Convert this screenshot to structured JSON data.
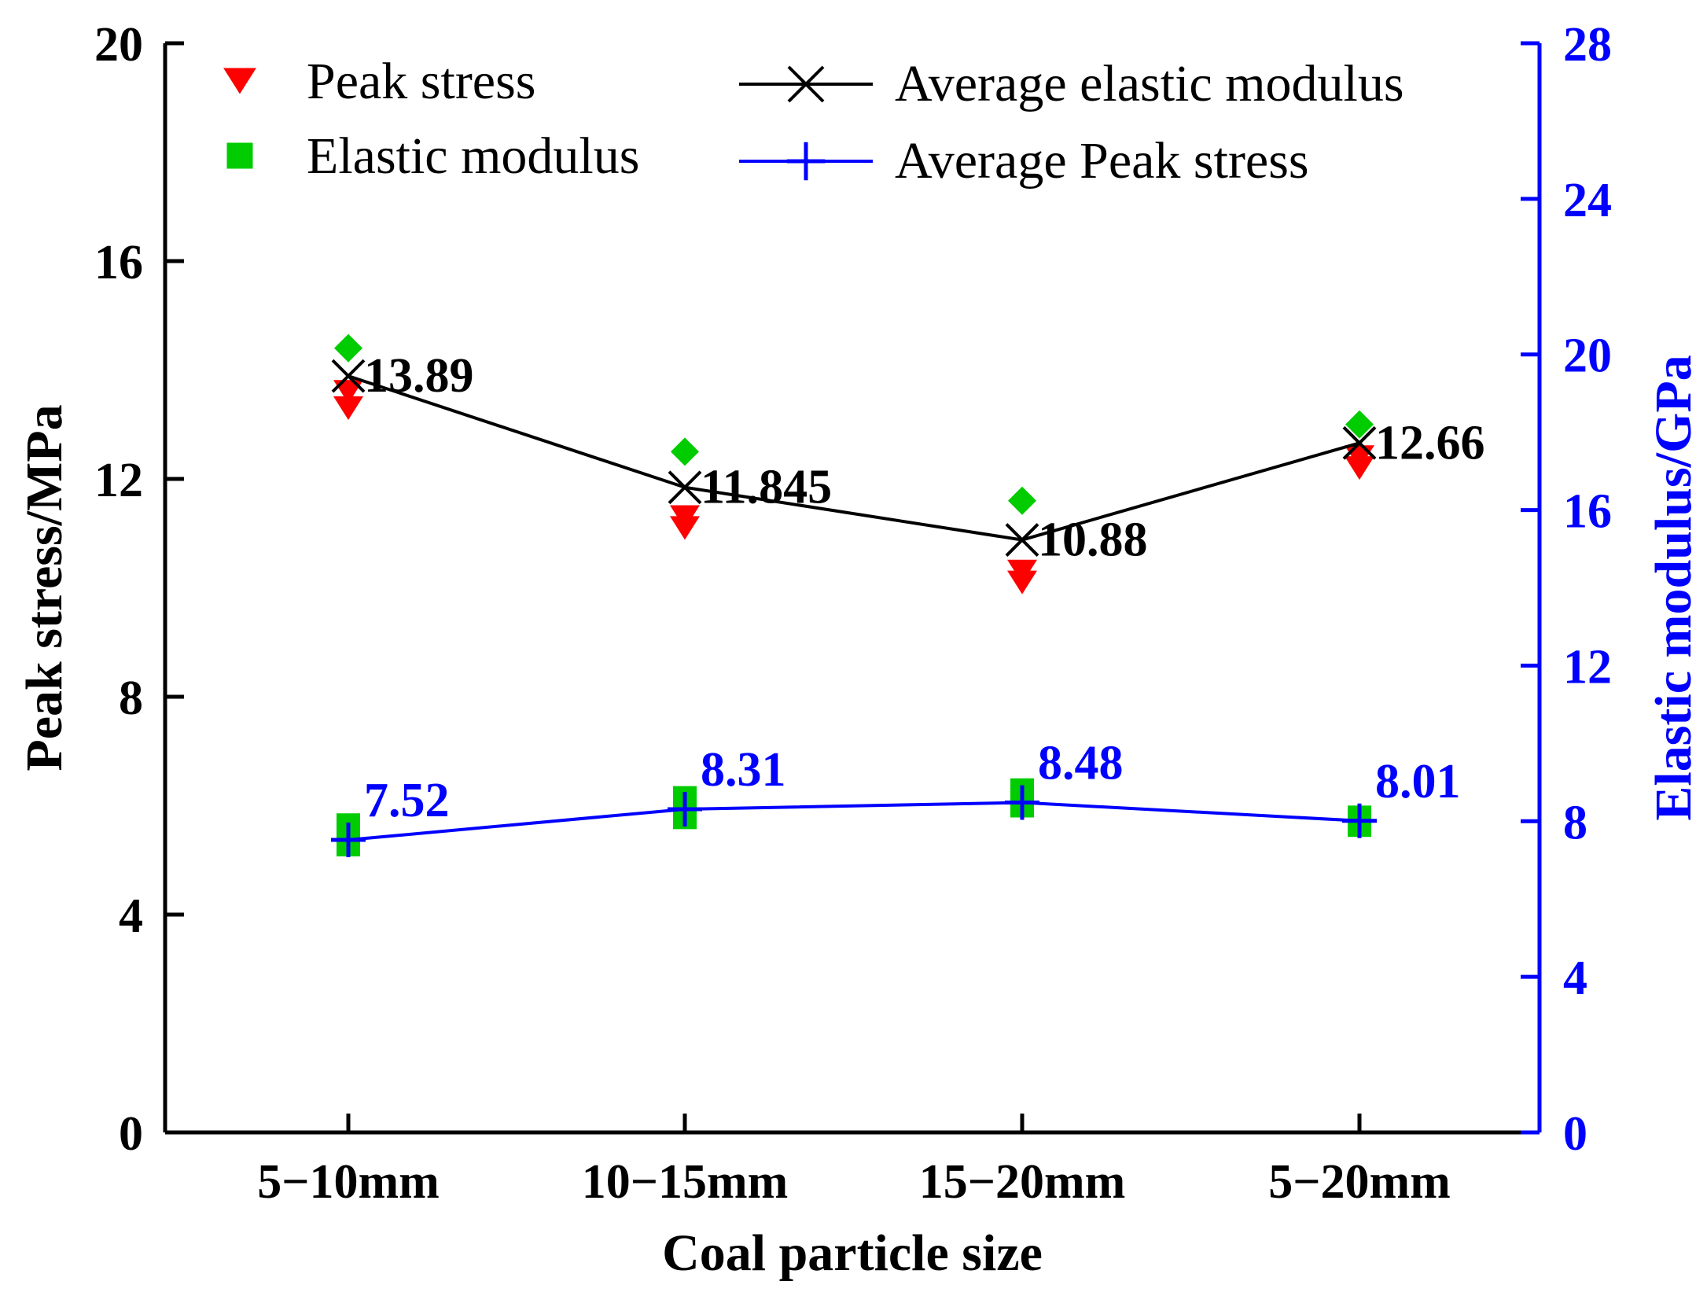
{
  "chart_data": {
    "type": "line",
    "title": "",
    "xlabel": "Coal particle size",
    "ylabel_left": "Peak stress/MPa",
    "ylabel_right": "Elastic modulus/GPa",
    "categories": [
      "5−10mm",
      "10−15mm",
      "15−20mm",
      "5−20mm"
    ],
    "ylim_left": [
      0,
      20
    ],
    "yticks_left": [
      0,
      4,
      8,
      12,
      16,
      20
    ],
    "ylim_right": [
      0,
      28
    ],
    "yticks_right": [
      0,
      4,
      8,
      12,
      16,
      20,
      24,
      28
    ],
    "grid": false,
    "legend_position": "top",
    "series": [
      {
        "name": "Peak stress",
        "axis": "left",
        "marker": "triangle-down",
        "line": false,
        "color": "#ff0000",
        "values": [
          [
            13.6,
            13.3
          ],
          [
            11.3,
            11.1
          ],
          [
            10.3,
            10.1
          ],
          [
            12.4,
            12.2
          ]
        ]
      },
      {
        "name": "Elastic modulus",
        "axis": "right",
        "marker": "square",
        "line": false,
        "color": "#00cc00",
        "values": [
          [
            7.9,
            7.4
          ],
          [
            8.6,
            8.1
          ],
          [
            8.8,
            8.4
          ],
          [
            8.1,
            7.9
          ]
        ]
      },
      {
        "name": "Elastic modulus (upper markers)",
        "axis": "left",
        "marker": "diamond",
        "line": false,
        "color": "#00cc00",
        "legend": false,
        "values": [
          14.4,
          12.5,
          11.6,
          13.0
        ]
      },
      {
        "name": "Average elastic modulus",
        "axis": "left",
        "marker": "x",
        "line": true,
        "color": "#000000",
        "values": [
          13.89,
          11.845,
          10.88,
          12.66
        ],
        "labels": [
          "13.89",
          "11.845",
          "10.88",
          "12.66"
        ]
      },
      {
        "name": "Average Peak stress",
        "axis": "right",
        "marker": "plus",
        "line": true,
        "color": "#0000ff",
        "values": [
          7.52,
          8.31,
          8.48,
          8.01
        ],
        "labels": [
          "7.52",
          "8.31",
          "8.48",
          "8.01"
        ]
      }
    ],
    "legend": [
      {
        "label": "Peak stress",
        "marker": "triangle-down",
        "color": "#ff0000"
      },
      {
        "label": "Elastic modulus",
        "marker": "square",
        "color": "#00cc00"
      },
      {
        "label": "Average elastic modulus",
        "marker": "x",
        "color": "#000000"
      },
      {
        "label": "Average Peak stress",
        "marker": "plus",
        "color": "#0000ff"
      }
    ],
    "colors": {
      "left_axis": "#000000",
      "right_axis": "#0000ff"
    }
  }
}
